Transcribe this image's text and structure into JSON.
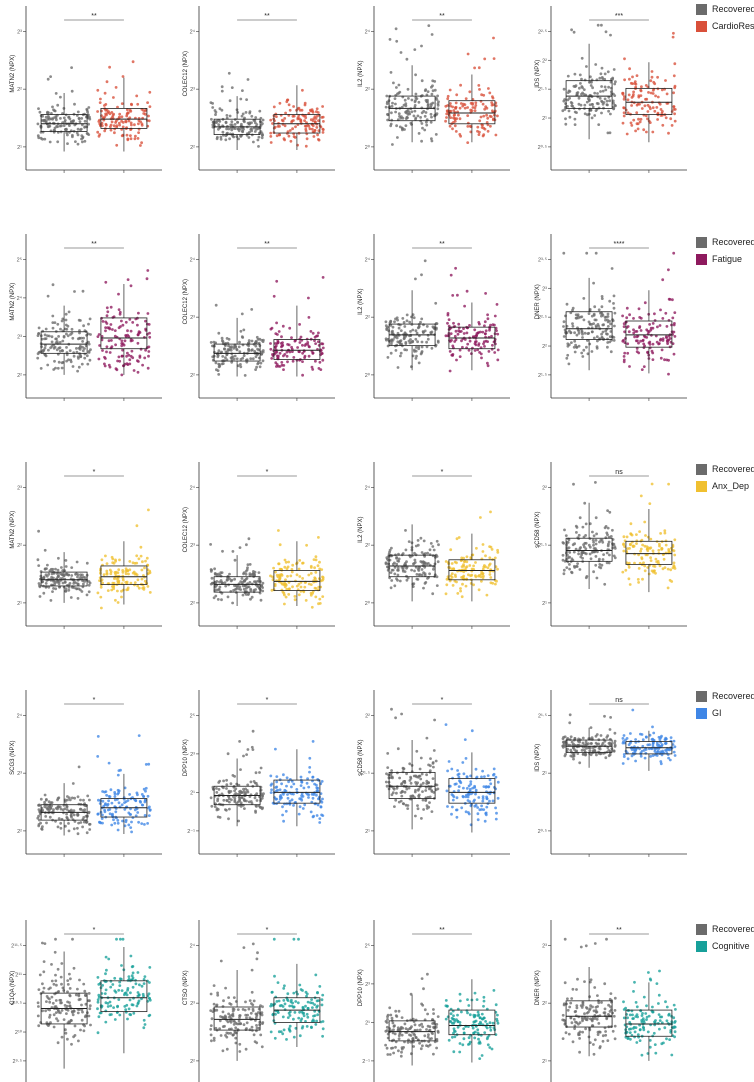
{
  "colors": {
    "recovered": "#6b6b6b",
    "CardioResp": "#d9503a",
    "Fatigue": "#8e1a5e",
    "Anx_Dep": "#f0c030",
    "GI": "#3f86e6",
    "Cognitive": "#17a09a"
  },
  "legends": [
    {
      "items": [
        "Recovered",
        "CardioResp"
      ]
    },
    {
      "items": [
        "Recovered",
        "Fatigue"
      ]
    },
    {
      "items": [
        "Recovered",
        "Anx_Dep"
      ]
    },
    {
      "items": [
        "Recovered",
        "GI"
      ]
    },
    {
      "items": [
        "Recovered",
        "Cognitive"
      ]
    }
  ],
  "chart_data": [
    {
      "type": "box",
      "row": 0,
      "col": 0,
      "ylabel": "MATN2 (NPX)",
      "yticks": [
        "2³",
        "2²",
        "2¹"
      ],
      "sig": "**",
      "groups": [
        "Recovered",
        "CardioResp"
      ],
      "ylim": [
        0,
        10
      ],
      "box_values": [
        {
          "q1": 2.5,
          "median": 3.0,
          "q3": 3.6,
          "wlo": 1.2,
          "whi": 5.0
        },
        {
          "q1": 2.7,
          "median": 3.3,
          "q3": 4.0,
          "wlo": 1.2,
          "whi": 6.0
        }
      ]
    },
    {
      "type": "box",
      "row": 0,
      "col": 1,
      "ylabel": "COLEC12 (NPX)",
      "yticks": [
        "2⁴",
        "2³",
        "2²"
      ],
      "sig": "**",
      "groups": [
        "Recovered",
        "CardioResp"
      ],
      "ylim": [
        0,
        10
      ],
      "box_values": [
        {
          "q1": 2.3,
          "median": 2.8,
          "q3": 3.3,
          "wlo": 1.3,
          "whi": 4.8
        },
        {
          "q1": 2.4,
          "median": 3.0,
          "q3": 3.6,
          "wlo": 1.3,
          "whi": 5.5
        }
      ]
    },
    {
      "type": "box",
      "row": 0,
      "col": 2,
      "ylabel": "IL2 (NPX)",
      "yticks": [
        "2⁴",
        "2²",
        "2⁰"
      ],
      "sig": "**",
      "groups": [
        "Recovered",
        "CardioResp"
      ],
      "ylim": [
        0,
        10
      ],
      "box_values": [
        {
          "q1": 3.2,
          "median": 4.0,
          "q3": 4.8,
          "wlo": 1.8,
          "whi": 6.8
        },
        {
          "q1": 3.0,
          "median": 3.7,
          "q3": 4.5,
          "wlo": 1.8,
          "whi": 6.2
        }
      ]
    },
    {
      "type": "box",
      "row": 0,
      "col": 3,
      "ylabel": "IDS (NPX)",
      "yticks": [
        "2²·⁵",
        "2²",
        "2¹·⁵",
        "2¹",
        "2⁰·⁵"
      ],
      "sig": "***",
      "groups": [
        "Recovered",
        "CardioResp"
      ],
      "ylim": [
        0,
        10
      ],
      "box_values": [
        {
          "q1": 4.0,
          "median": 4.8,
          "q3": 5.8,
          "wlo": 2.0,
          "whi": 8.2
        },
        {
          "q1": 3.6,
          "median": 4.4,
          "q3": 5.3,
          "wlo": 1.8,
          "whi": 7.0
        }
      ]
    },
    {
      "type": "box",
      "row": 1,
      "col": 0,
      "ylabel": "MATN2 (NPX)",
      "yticks": [
        "2⁵",
        "2⁴",
        "2³",
        "2²"
      ],
      "sig": "**",
      "groups": [
        "Recovered",
        "Fatigue"
      ],
      "ylim": [
        0,
        10
      ],
      "box_values": [
        {
          "q1": 2.9,
          "median": 3.5,
          "q3": 4.3,
          "wlo": 1.5,
          "whi": 6.0
        },
        {
          "q1": 3.2,
          "median": 3.9,
          "q3": 5.2,
          "wlo": 1.5,
          "whi": 7.4
        }
      ]
    },
    {
      "type": "box",
      "row": 1,
      "col": 1,
      "ylabel": "COLEC12 (NPX)",
      "yticks": [
        "2⁴",
        "2³",
        "2²"
      ],
      "sig": "**",
      "groups": [
        "Recovered",
        "Fatigue"
      ],
      "ylim": [
        0,
        10
      ],
      "box_values": [
        {
          "q1": 2.4,
          "median": 2.9,
          "q3": 3.5,
          "wlo": 1.4,
          "whi": 5.2
        },
        {
          "q1": 2.5,
          "median": 3.1,
          "q3": 3.8,
          "wlo": 1.4,
          "whi": 6.0
        }
      ]
    },
    {
      "type": "box",
      "row": 1,
      "col": 2,
      "ylabel": "IL2 (NPX)",
      "yticks": [
        "2⁴",
        "2²",
        "2⁰"
      ],
      "sig": "**",
      "groups": [
        "Recovered",
        "Fatigue"
      ],
      "ylim": [
        0,
        10
      ],
      "box_values": [
        {
          "q1": 3.4,
          "median": 4.1,
          "q3": 4.8,
          "wlo": 1.8,
          "whi": 7.0
        },
        {
          "q1": 3.2,
          "median": 3.9,
          "q3": 4.6,
          "wlo": 1.8,
          "whi": 6.2
        }
      ]
    },
    {
      "type": "box",
      "row": 1,
      "col": 3,
      "ylabel": "DNER (NPX)",
      "yticks": [
        "2³·⁵",
        "2³",
        "2²·⁵",
        "2²",
        "2¹·⁵"
      ],
      "sig": "****",
      "groups": [
        "Recovered",
        "Fatigue"
      ],
      "ylim": [
        0,
        10
      ],
      "box_values": [
        {
          "q1": 3.8,
          "median": 4.5,
          "q3": 5.6,
          "wlo": 1.8,
          "whi": 7.8
        },
        {
          "q1": 3.3,
          "median": 4.1,
          "q3": 5.0,
          "wlo": 1.6,
          "whi": 7.0
        }
      ]
    },
    {
      "type": "box",
      "row": 2,
      "col": 0,
      "ylabel": "MATN2 (NPX)",
      "yticks": [
        "2³",
        "2²",
        "2¹"
      ],
      "sig": "*",
      "groups": [
        "Recovered",
        "Anx_Dep"
      ],
      "ylim": [
        0,
        10
      ],
      "box_values": [
        {
          "q1": 2.6,
          "median": 3.0,
          "q3": 3.5,
          "wlo": 1.5,
          "whi": 4.8
        },
        {
          "q1": 2.7,
          "median": 3.2,
          "q3": 3.9,
          "wlo": 1.4,
          "whi": 5.5
        }
      ]
    },
    {
      "type": "box",
      "row": 2,
      "col": 1,
      "ylabel": "COLEC12 (NPX)",
      "yticks": [
        "2⁴",
        "2³",
        "2²"
      ],
      "sig": "*",
      "groups": [
        "Recovered",
        "Anx_Dep"
      ],
      "ylim": [
        0,
        10
      ],
      "box_values": [
        {
          "q1": 2.2,
          "median": 2.7,
          "q3": 3.2,
          "wlo": 1.3,
          "whi": 4.6
        },
        {
          "q1": 2.3,
          "median": 2.9,
          "q3": 3.6,
          "wlo": 1.3,
          "whi": 5.5
        }
      ]
    },
    {
      "type": "box",
      "row": 2,
      "col": 2,
      "ylabel": "IL2 (NPX)",
      "yticks": [
        "2⁴",
        "2²",
        "2⁰"
      ],
      "sig": "*",
      "groups": [
        "Recovered",
        "Anx_Dep"
      ],
      "ylim": [
        0,
        10
      ],
      "box_values": [
        {
          "q1": 3.2,
          "median": 3.9,
          "q3": 4.6,
          "wlo": 1.6,
          "whi": 6.6
        },
        {
          "q1": 3.0,
          "median": 3.6,
          "q3": 4.3,
          "wlo": 1.6,
          "whi": 6.0
        }
      ]
    },
    {
      "type": "box",
      "row": 2,
      "col": 3,
      "ylabel": "sCD58 (NPX)",
      "yticks": [
        "2²",
        "2¹·⁵",
        "2¹"
      ],
      "sig": "ns",
      "groups": [
        "Recovered",
        "Anx_Dep"
      ],
      "ylim": [
        0,
        10
      ],
      "box_values": [
        {
          "q1": 4.2,
          "median": 4.9,
          "q3": 5.7,
          "wlo": 2.4,
          "whi": 8.0
        },
        {
          "q1": 4.0,
          "median": 4.7,
          "q3": 5.5,
          "wlo": 2.2,
          "whi": 7.6
        }
      ]
    },
    {
      "type": "box",
      "row": 3,
      "col": 0,
      "ylabel": "SCG3 (NPX)",
      "yticks": [
        "2⁴",
        "2³",
        "2²"
      ],
      "sig": "*",
      "groups": [
        "Recovered",
        "GI"
      ],
      "ylim": [
        0,
        10
      ],
      "box_values": [
        {
          "q1": 2.2,
          "median": 2.7,
          "q3": 3.2,
          "wlo": 1.2,
          "whi": 4.6
        },
        {
          "q1": 2.4,
          "median": 3.0,
          "q3": 3.6,
          "wlo": 1.3,
          "whi": 5.2
        }
      ]
    },
    {
      "type": "box",
      "row": 3,
      "col": 1,
      "ylabel": "DPP10 (NPX)",
      "yticks": [
        "2⁵",
        "2³",
        "2¹",
        "2⁻¹"
      ],
      "sig": "*",
      "groups": [
        "Recovered",
        "GI"
      ],
      "ylim": [
        0,
        10
      ],
      "box_values": [
        {
          "q1": 3.2,
          "median": 3.8,
          "q3": 4.4,
          "wlo": 1.8,
          "whi": 6.2
        },
        {
          "q1": 3.3,
          "median": 4.0,
          "q3": 4.8,
          "wlo": 1.8,
          "whi": 6.8
        }
      ]
    },
    {
      "type": "box",
      "row": 3,
      "col": 2,
      "ylabel": "sCD58 (NPX)",
      "yticks": [
        "2²",
        "2¹·⁵",
        "2¹"
      ],
      "sig": "*",
      "groups": [
        "Recovered",
        "GI"
      ],
      "ylim": [
        0,
        10
      ],
      "box_values": [
        {
          "q1": 3.6,
          "median": 4.4,
          "q3": 5.3,
          "wlo": 1.6,
          "whi": 7.4
        },
        {
          "q1": 3.3,
          "median": 4.0,
          "q3": 4.9,
          "wlo": 1.4,
          "whi": 6.6
        }
      ]
    },
    {
      "type": "box",
      "row": 3,
      "col": 3,
      "ylabel": "IDS (NPX)",
      "yticks": [
        "2¹·⁵",
        "2¹",
        "2⁰·⁵"
      ],
      "sig": "ns",
      "groups": [
        "Recovered",
        "GI"
      ],
      "ylim": [
        0,
        10
      ],
      "box_values": [
        {
          "q1": 6.6,
          "median": 7.0,
          "q3": 7.4,
          "wlo": 5.6,
          "whi": 8.2
        },
        {
          "q1": 6.5,
          "median": 6.9,
          "q3": 7.3,
          "wlo": 5.4,
          "whi": 8.0
        }
      ]
    },
    {
      "type": "box",
      "row": 4,
      "col": 0,
      "ylabel": "C1QA (NPX)",
      "yticks": [
        "2¹¹·⁵",
        "2¹¹",
        "2¹⁰·⁵",
        "2¹⁰",
        "2⁹·⁵"
      ],
      "sig": "*",
      "groups": [
        "Recovered",
        "Cognitive"
      ],
      "ylim": [
        0,
        10
      ],
      "box_values": [
        {
          "q1": 3.9,
          "median": 4.9,
          "q3": 5.9,
          "wlo": 1.0,
          "whi": 8.6
        },
        {
          "q1": 4.7,
          "median": 5.6,
          "q3": 6.7,
          "wlo": 2.0,
          "whi": 8.9
        }
      ]
    },
    {
      "type": "box",
      "row": 4,
      "col": 1,
      "ylabel": "CTSO (NPX)",
      "yticks": [
        "2⁴",
        "2³",
        "2²"
      ],
      "sig": "*",
      "groups": [
        "Recovered",
        "Cognitive"
      ],
      "ylim": [
        0,
        10
      ],
      "box_values": [
        {
          "q1": 3.5,
          "median": 4.2,
          "q3": 5.0,
          "wlo": 1.5,
          "whi": 7.4
        },
        {
          "q1": 4.0,
          "median": 4.8,
          "q3": 5.6,
          "wlo": 2.4,
          "whi": 7.8
        }
      ]
    },
    {
      "type": "box",
      "row": 4,
      "col": 2,
      "ylabel": "DPP10 (NPX)",
      "yticks": [
        "2⁵",
        "2³",
        "2¹",
        "2⁻¹"
      ],
      "sig": "**",
      "groups": [
        "Recovered",
        "Cognitive"
      ],
      "ylim": [
        0,
        10
      ],
      "box_values": [
        {
          "q1": 2.8,
          "median": 3.4,
          "q3": 4.1,
          "wlo": 1.2,
          "whi": 5.8
        },
        {
          "q1": 3.2,
          "median": 3.8,
          "q3": 4.8,
          "wlo": 1.4,
          "whi": 6.8
        }
      ]
    },
    {
      "type": "box",
      "row": 4,
      "col": 3,
      "ylabel": "DNER (NPX)",
      "yticks": [
        "2³",
        "2²",
        "2¹"
      ],
      "sig": "**",
      "groups": [
        "Recovered",
        "Cognitive"
      ],
      "ylim": [
        0,
        10
      ],
      "box_values": [
        {
          "q1": 3.7,
          "median": 4.4,
          "q3": 5.4,
          "wlo": 1.8,
          "whi": 7.6
        },
        {
          "q1": 3.1,
          "median": 3.9,
          "q3": 4.8,
          "wlo": 1.5,
          "whi": 6.6
        }
      ]
    }
  ]
}
